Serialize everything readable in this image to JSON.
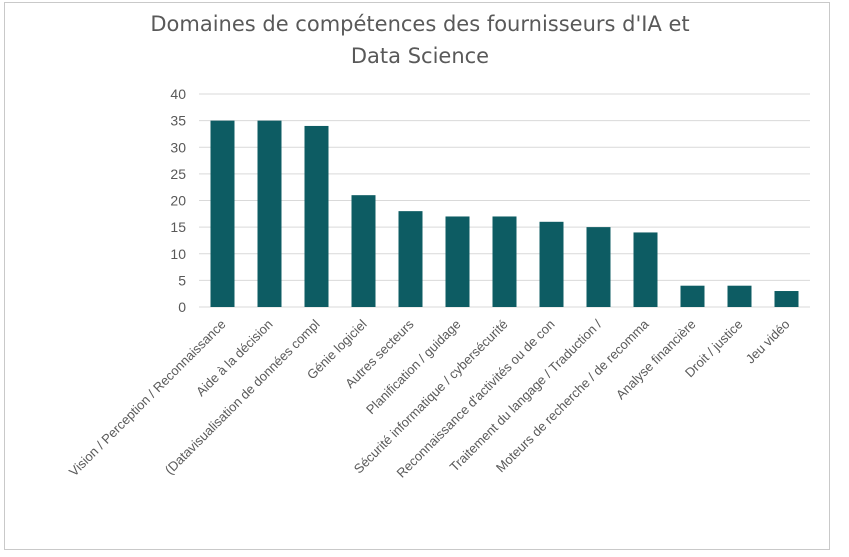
{
  "chart_data": {
    "type": "bar",
    "title_lines": [
      "Domaines de compétences des fournisseurs d'IA et",
      "Data Science"
    ],
    "categories": [
      "Vision / Perception / Reconnaissance",
      "Aide à la décision",
      "(Datavisualisation de données compl",
      "Génie logiciel",
      "Autres secteurs",
      "Planification / guidage",
      "Sécurité informatique / cybersécurité",
      "Reconnaissance d'activités ou de con",
      "Traitement du langage / Traduction /",
      "Moteurs de recherche / de recomma",
      "Analyse financière",
      "Droit / justice",
      "Jeu vidéo"
    ],
    "values": [
      35,
      35,
      34,
      21,
      18,
      17,
      17,
      16,
      15,
      14,
      4,
      4,
      3
    ],
    "ylim": [
      0,
      40
    ],
    "yticks": [
      0,
      5,
      10,
      15,
      20,
      25,
      30,
      35,
      40
    ],
    "grid": true,
    "colors": {
      "bar": "#0d5c63",
      "grid": "#d9d9d9",
      "axis_text": "#595959"
    }
  }
}
